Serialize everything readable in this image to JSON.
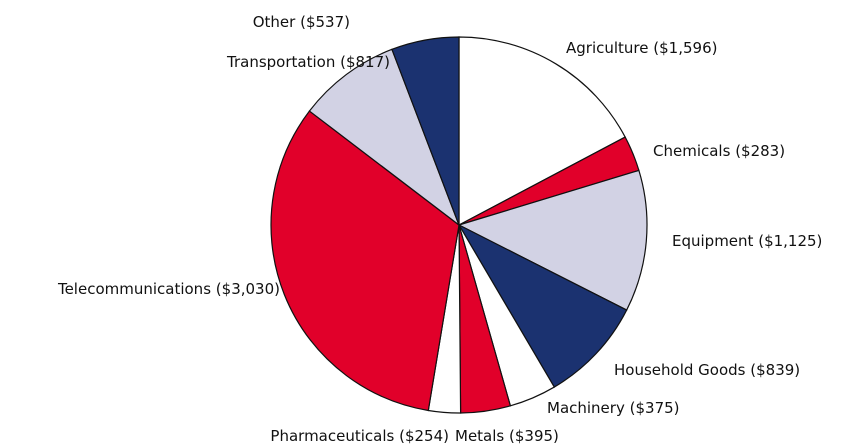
{
  "chart_data": {
    "type": "pie",
    "categories": [
      "Agriculture",
      "Chemicals",
      "Equipment",
      "Household Goods",
      "Machinery",
      "Metals",
      "Pharmaceuticals",
      "Telecommunications",
      "Transportation",
      "Other"
    ],
    "values": [
      1596,
      283,
      1125,
      839,
      375,
      395,
      254,
      3030,
      817,
      537
    ],
    "value_labels": [
      "($1,596)",
      "($283)",
      "($1,125)",
      "($839)",
      "($375)",
      "($395)",
      "($254)",
      "($3,030)",
      "($817)",
      "($537)"
    ],
    "colors": [
      "#ffffff",
      "#e1002a",
      "#d2d2e4",
      "#1b3270",
      "#ffffff",
      "#e1002a",
      "#ffffff",
      "#e1002a",
      "#d2d2e4",
      "#1b3270"
    ]
  }
}
